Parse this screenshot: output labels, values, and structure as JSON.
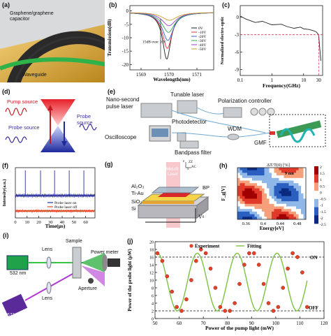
{
  "panel_labels": {
    "a": "(a)",
    "b": "(b)",
    "c": "(c)",
    "d": "(d)",
    "e": "(e)",
    "f": "(f)",
    "g": "(g)",
    "h": "(h)",
    "i": "(i)",
    "j": "(j)"
  },
  "panel_a": {
    "label1": "Graphene/graphene",
    "label2": "capacitor",
    "label3": "Waveguide"
  },
  "panel_d": {
    "pump": "Pump source",
    "probe_left": "Probe source",
    "probe_right": "Probe source"
  },
  "panel_e": {
    "nano": "Nano-second",
    "pulse": "pulse laser",
    "tunable": "Tunable laser",
    "polarization": "Polarization controller",
    "photodetector": "Photodetector",
    "oscilloscope": "Oscilloscope",
    "wdm": "WDM",
    "gmf": "GMF",
    "bandpass": "Bandpass filter"
  },
  "panel_g": {
    "midir1": "Mid-IR",
    "midir2": "Laser",
    "al2o3": "Al₂O₃",
    "tiau": "Ti-Au",
    "sio2": "SiO₂",
    "si": "Si",
    "bp": "BP",
    "vg": "Vᵍ",
    "axis_z": "z",
    "axis_zz": "ZZ",
    "axis_x": "x",
    "axis_ac": "AC"
  },
  "panel_i": {
    "l532": "532 nm",
    "l671": "671 nm",
    "lens1": "Lens",
    "lens2": "Lens",
    "sample": "Sample",
    "aperture": "Aperture",
    "meter": "Power meter"
  },
  "chart_data": [
    {
      "panel": "b",
      "type": "line",
      "xlabel": "Wavelength(nm)",
      "ylabel": "Transmission(dB)",
      "xlim": [
        1568.6,
        1571.6
      ],
      "ylim": [
        -22,
        2
      ],
      "xticks": [
        1569,
        1570,
        1571
      ],
      "yticks": [
        0,
        -5,
        -10,
        -15,
        -20
      ],
      "annotation": "15dB over 10V",
      "series": [
        {
          "name": "0V",
          "color": "#222222",
          "center": 1569.92,
          "depth": -17.5
        },
        {
          "name": "-10V",
          "color": "#d43a3a",
          "center": 1569.94,
          "depth": -13.5
        },
        {
          "name": "-20V",
          "color": "#3a5fd4",
          "center": 1569.96,
          "depth": -10.5
        },
        {
          "name": "-30V",
          "color": "#2ea84a",
          "center": 1569.98,
          "depth": -7.5
        },
        {
          "name": "-40V",
          "color": "#9b3ad4",
          "center": 1570.0,
          "depth": -5.0
        },
        {
          "name": "-50V",
          "color": "#c8a02a",
          "center": 1570.02,
          "depth": -3.0
        }
      ]
    },
    {
      "panel": "c",
      "type": "line",
      "xlabel": "Frequency(GHz)",
      "ylabel": "Normalized electro-optic",
      "xlim": [
        0.1,
        40
      ],
      "xscale": "log",
      "ylim": [
        -10,
        2
      ],
      "yticks": [
        0,
        -3,
        -6,
        -9
      ],
      "xtick_labels": [
        "0.1",
        "1",
        "10"
      ],
      "marker_label": "30",
      "threshold_db": -3,
      "x": [
        0.1,
        0.15,
        0.3,
        0.5,
        1,
        2,
        3,
        5,
        8,
        10,
        15,
        20,
        25,
        30,
        35
      ],
      "y": [
        0.2,
        -0.3,
        -0.9,
        -0.7,
        -1.3,
        -1.2,
        -1.6,
        -1.9,
        -1.7,
        -2.0,
        -2.1,
        -2.3,
        -2.5,
        -3.0,
        -7.5
      ]
    },
    {
      "panel": "f",
      "type": "line",
      "xlabel": "Time(μs)",
      "ylabel": "Intensity(a.u.)",
      "xlim": [
        0,
        68
      ],
      "xticks": [
        0,
        10,
        20,
        30,
        40,
        50,
        60
      ],
      "legend": [
        "Probe laser on",
        "Probe laser off"
      ],
      "pulse_times": [
        8.5,
        21.5,
        33.5,
        46,
        58.5
      ]
    },
    {
      "panel": "h",
      "type": "heatmap",
      "title": "ΔT/T(0) [%]",
      "annotation": "9 nm",
      "xlabel": "Energy[eV]",
      "ylabel": "F_g[V]",
      "xticks": [
        0.36,
        0.4,
        0.44,
        0.48
      ],
      "colorbar_ticks": [
        2,
        1.5,
        1,
        0.5,
        0,
        -0.5,
        -1,
        -1.5,
        -2,
        -2.5
      ]
    },
    {
      "panel": "j",
      "type": "scatter",
      "xlabel": "Power of the pump light (mW)",
      "ylabel": "Power of the probe light (μW)",
      "xlim": [
        50,
        120
      ],
      "ylim": [
        0,
        20
      ],
      "xticks": [
        50,
        60,
        70,
        80,
        90,
        100,
        110,
        120
      ],
      "yticks": [
        0,
        2,
        4,
        6,
        8,
        10,
        12,
        14,
        16,
        18,
        20
      ],
      "legend": [
        "Experiment",
        "Fitting"
      ],
      "on_label": "ON",
      "off_label": "OFF",
      "on_level": 16,
      "off_level": 2,
      "x": [
        51,
        53,
        55,
        57,
        59,
        61,
        63,
        65,
        67,
        69,
        71,
        73,
        75,
        77,
        79,
        81,
        83,
        85,
        87,
        89,
        91,
        93,
        95,
        97,
        99,
        101,
        103,
        105,
        107,
        109,
        111,
        113
      ],
      "y": [
        17,
        15,
        11,
        7,
        3,
        2,
        5,
        10,
        15,
        18,
        17,
        13,
        8,
        3,
        2,
        2,
        4,
        9,
        14,
        17,
        17,
        14,
        9,
        4,
        2,
        3,
        8,
        13,
        17,
        16,
        12,
        3
      ]
    }
  ]
}
